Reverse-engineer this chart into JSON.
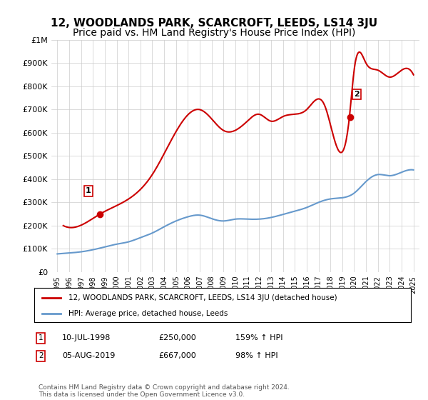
{
  "title": "12, WOODLANDS PARK, SCARCROFT, LEEDS, LS14 3JU",
  "subtitle": "Price paid vs. HM Land Registry's House Price Index (HPI)",
  "title_fontsize": 11,
  "subtitle_fontsize": 10,
  "ylim": [
    0,
    1000000
  ],
  "yticks": [
    0,
    100000,
    200000,
    300000,
    400000,
    500000,
    600000,
    700000,
    800000,
    900000,
    1000000
  ],
  "ytick_labels": [
    "£0",
    "£100K",
    "£200K",
    "£300K",
    "£400K",
    "£500K",
    "£600K",
    "£700K",
    "£800K",
    "£900K",
    "£1M"
  ],
  "xlabel": "",
  "ylabel": "",
  "background_color": "#ffffff",
  "grid_color": "#cccccc",
  "sale1_date": "1998-07-10",
  "sale1_price": 250000,
  "sale1_label": "1",
  "sale1_text": "10-JUL-1998    £250,000    159% ↑ HPI",
  "sale2_date": "2019-08-05",
  "sale2_price": 667000,
  "sale2_label": "2",
  "sale2_text": "05-AUG-2019    £667,000    98% ↑ HPI",
  "legend_line1": "12, WOODLANDS PARK, SCARCROFT, LEEDS, LS14 3JU (detached house)",
  "legend_line2": "HPI: Average price, detached house, Leeds",
  "footer": "Contains HM Land Registry data © Crown copyright and database right 2024.\nThis data is licensed under the Open Government Licence v3.0.",
  "red_color": "#cc0000",
  "blue_color": "#6699cc",
  "hpi_years": [
    1995,
    1996,
    1997,
    1998,
    1999,
    2000,
    2001,
    2002,
    2003,
    2004,
    2005,
    2006,
    2007,
    2008,
    2009,
    2010,
    2011,
    2012,
    2013,
    2014,
    2015,
    2016,
    2017,
    2018,
    2019,
    2020,
    2021,
    2022,
    2023,
    2024,
    2025
  ],
  "hpi_values": [
    78000,
    82000,
    87000,
    96000,
    108000,
    120000,
    130000,
    148000,
    168000,
    195000,
    220000,
    238000,
    245000,
    230000,
    220000,
    228000,
    228000,
    228000,
    235000,
    248000,
    262000,
    278000,
    300000,
    315000,
    320000,
    340000,
    390000,
    420000,
    415000,
    430000,
    440000
  ],
  "price_years_x": [
    1995.5,
    1997.5,
    1998.6,
    2003,
    2007,
    2008,
    2009,
    2011,
    2012,
    2013,
    2014,
    2015,
    2016,
    2017.5,
    2019.6,
    2020,
    2021,
    2022,
    2023,
    2024,
    2025
  ],
  "price_values_y": [
    200000,
    215000,
    250000,
    420000,
    700000,
    660000,
    610000,
    650000,
    680000,
    650000,
    670000,
    680000,
    700000,
    720000,
    667000,
    870000,
    900000,
    870000,
    840000,
    870000,
    850000
  ]
}
